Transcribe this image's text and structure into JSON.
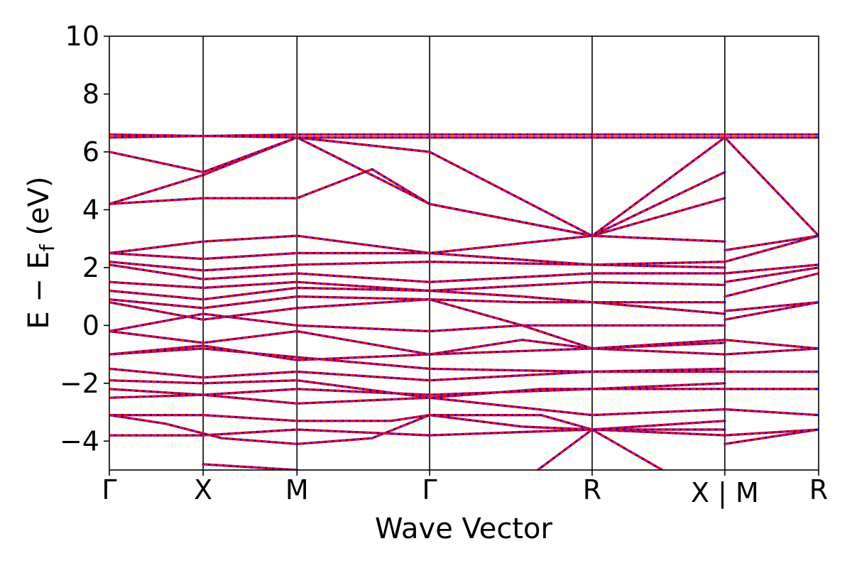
{
  "chart_data": {
    "type": "line",
    "xlabel": "Wave Vector",
    "ylabel_parts": {
      "pre": "E − E",
      "sub": "f",
      "post": " (eV)"
    },
    "ylim": [
      -5,
      10
    ],
    "y_ticks": [
      10,
      8,
      6,
      4,
      2,
      0,
      -2,
      -4
    ],
    "y_tick_labels": [
      "10",
      "8",
      "6",
      "4",
      "2",
      "0",
      "−2",
      "−4"
    ],
    "grid": false,
    "kpath": {
      "positions": [
        0,
        0.5,
        1.0,
        1.707,
        2.573,
        3.28,
        3.78
      ],
      "labels": [
        "Γ",
        "X",
        "M",
        "Γ",
        "R",
        "X | M",
        "R"
      ],
      "breaks": [
        3.28
      ]
    },
    "series": [
      {
        "color": "#0000ff",
        "dashed": false
      },
      {
        "color": "#ff0000",
        "dashed": true
      }
    ],
    "bands": [
      {
        "x": [
          0,
          0.5,
          1.0,
          1.707,
          2.573,
          3.28
        ],
        "y": [
          -3.8,
          -3.8,
          -3.6,
          -3.8,
          -3.6,
          -3.8
        ]
      },
      {
        "x": [
          0,
          0.3,
          0.6,
          1.0,
          1.4,
          1.707,
          2.2,
          2.573,
          3.28
        ],
        "y": [
          -3.1,
          -3.4,
          -3.9,
          -4.1,
          -3.9,
          -3.1,
          -3.5,
          -3.6,
          -3.3
        ]
      },
      {
        "x": [
          0,
          0.5,
          1.0,
          1.5,
          1.707,
          2.3,
          2.573,
          3.28
        ],
        "y": [
          -3.1,
          -3.1,
          -3.3,
          -3.3,
          -3.1,
          -3.1,
          -3.6,
          -3.6
        ]
      },
      {
        "x": [
          0,
          0.5,
          1.0,
          1.707,
          2.573,
          3.28
        ],
        "y": [
          -2.5,
          -2.4,
          -2.7,
          -2.5,
          -3.1,
          -2.9
        ]
      },
      {
        "x": [
          0,
          0.5,
          1.0,
          1.707,
          2.573,
          3.28
        ],
        "y": [
          -2.2,
          -2.4,
          -2.2,
          -2.4,
          -2.2,
          -2.2
        ]
      },
      {
        "x": [
          0,
          0.5,
          1.0,
          1.707,
          2.3,
          2.573,
          3.28
        ],
        "y": [
          -1.9,
          -2.0,
          -1.9,
          -2.5,
          -2.2,
          -2.2,
          -2.0
        ]
      },
      {
        "x": [
          0,
          0.5,
          1.0,
          1.707,
          2.573,
          3.28
        ],
        "y": [
          -1.5,
          -1.8,
          -1.6,
          -1.9,
          -1.6,
          -1.5
        ]
      },
      {
        "x": [
          0,
          0.5,
          1.0,
          1.707,
          2.573,
          3.28
        ],
        "y": [
          -1.0,
          -0.8,
          -1.1,
          -1.5,
          -1.6,
          -1.6
        ]
      },
      {
        "x": [
          0,
          0.5,
          1.0,
          1.707,
          2.573,
          3.28
        ],
        "y": [
          -1.0,
          -0.7,
          -1.2,
          -1.0,
          -0.8,
          -1.0
        ]
      },
      {
        "x": [
          0,
          0.5,
          1.0,
          1.707,
          2.2,
          2.573,
          3.28
        ],
        "y": [
          -0.2,
          -0.6,
          -0.2,
          -1.0,
          -0.5,
          -0.8,
          -0.6
        ]
      },
      {
        "x": [
          0,
          0.5,
          1.0,
          1.707,
          2.2,
          2.573,
          3.28
        ],
        "y": [
          -0.2,
          0.4,
          0.0,
          -0.2,
          0.0,
          -0.8,
          -0.5
        ]
      },
      {
        "x": [
          0,
          0.5,
          1.0,
          1.707,
          2.2,
          2.573,
          3.28
        ],
        "y": [
          0.8,
          0.2,
          0.6,
          0.9,
          0.0,
          0.0,
          0.0
        ]
      },
      {
        "x": [
          0,
          0.5,
          1.0,
          1.707,
          2.2,
          2.573,
          3.28
        ],
        "y": [
          0.9,
          0.6,
          1.0,
          0.9,
          0.8,
          0.8,
          0.4
        ]
      },
      {
        "x": [
          0,
          0.5,
          1.0,
          1.707,
          2.2,
          2.573,
          3.28
        ],
        "y": [
          1.2,
          0.9,
          1.3,
          1.2,
          1.0,
          0.8,
          0.8
        ]
      },
      {
        "x": [
          0,
          0.5,
          1.0,
          1.707,
          2.573,
          3.28
        ],
        "y": [
          1.5,
          1.3,
          1.5,
          1.2,
          1.5,
          1.4
        ]
      },
      {
        "x": [
          0,
          0.5,
          1.0,
          1.707,
          2.573,
          3.28
        ],
        "y": [
          2.1,
          1.6,
          1.8,
          1.5,
          1.8,
          1.8
        ]
      },
      {
        "x": [
          0,
          0.5,
          1.0,
          1.707,
          2.573,
          3.28
        ],
        "y": [
          2.2,
          1.9,
          2.1,
          2.2,
          2.1,
          2.0
        ]
      },
      {
        "x": [
          0,
          0.5,
          1.0,
          1.707,
          2.573,
          3.28
        ],
        "y": [
          2.5,
          2.3,
          2.5,
          2.5,
          2.1,
          2.2
        ]
      },
      {
        "x": [
          0,
          0.5,
          1.0,
          1.707,
          2.573,
          3.28
        ],
        "y": [
          2.5,
          2.9,
          3.1,
          2.5,
          3.1,
          2.9
        ]
      },
      {
        "x": [
          0,
          0.5,
          1.0,
          1.4,
          1.707,
          2.573,
          3.28
        ],
        "y": [
          4.2,
          4.4,
          4.4,
          5.4,
          4.2,
          3.1,
          4.4
        ]
      },
      {
        "x": [
          0,
          0.5,
          1.0,
          1.707,
          2.573,
          3.28
        ],
        "y": [
          4.2,
          5.2,
          6.5,
          4.2,
          3.1,
          5.3
        ]
      },
      {
        "x": [
          0,
          0.5,
          1.0,
          1.707,
          2.573,
          3.28
        ],
        "y": [
          6.0,
          5.3,
          6.5,
          6.0,
          3.1,
          6.5
        ]
      },
      {
        "x": [
          0,
          1.0,
          1.707,
          2.573,
          3.28
        ],
        "y": [
          6.5,
          6.6,
          6.6,
          6.6,
          6.6
        ]
      },
      {
        "x": [
          0,
          1.0,
          1.707,
          2.573,
          3.28
        ],
        "y": [
          6.6,
          6.5,
          6.5,
          6.5,
          6.5
        ]
      },
      {
        "x": [
          0.5,
          1.0,
          1.2,
          1.707,
          2.2,
          2.573,
          3.0,
          3.28
        ],
        "y": [
          -4.8,
          -5.0,
          -5.5,
          -5.5,
          -5.4,
          -3.6,
          -5.2,
          -5.3
        ]
      },
      {
        "x": [
          3.28,
          3.78
        ],
        "y": [
          -4.1,
          -3.6
        ]
      },
      {
        "x": [
          3.28,
          3.78
        ],
        "y": [
          -3.8,
          -3.6
        ]
      },
      {
        "x": [
          3.28,
          3.78
        ],
        "y": [
          -2.9,
          -3.1
        ]
      },
      {
        "x": [
          3.28,
          3.78
        ],
        "y": [
          -2.2,
          -2.2
        ]
      },
      {
        "x": [
          3.28,
          3.78
        ],
        "y": [
          -1.6,
          -1.6
        ]
      },
      {
        "x": [
          3.28,
          3.78
        ],
        "y": [
          -1.0,
          -0.8
        ]
      },
      {
        "x": [
          3.28,
          3.78
        ],
        "y": [
          -0.5,
          -0.8
        ]
      },
      {
        "x": [
          3.28,
          3.78
        ],
        "y": [
          0.2,
          0.8
        ]
      },
      {
        "x": [
          3.28,
          3.78
        ],
        "y": [
          0.5,
          0.8
        ]
      },
      {
        "x": [
          3.28,
          3.78
        ],
        "y": [
          1.0,
          1.8
        ]
      },
      {
        "x": [
          3.28,
          3.78
        ],
        "y": [
          1.5,
          2.0
        ]
      },
      {
        "x": [
          3.28,
          3.78
        ],
        "y": [
          1.8,
          2.1
        ]
      },
      {
        "x": [
          3.28,
          3.78
        ],
        "y": [
          2.2,
          3.1
        ]
      },
      {
        "x": [
          3.28,
          3.78
        ],
        "y": [
          2.6,
          3.1
        ]
      },
      {
        "x": [
          3.28,
          3.78
        ],
        "y": [
          6.5,
          3.1
        ]
      },
      {
        "x": [
          3.28,
          3.78
        ],
        "y": [
          6.6,
          6.6
        ]
      },
      {
        "x": [
          3.28,
          3.78
        ],
        "y": [
          6.5,
          6.5
        ]
      }
    ]
  }
}
